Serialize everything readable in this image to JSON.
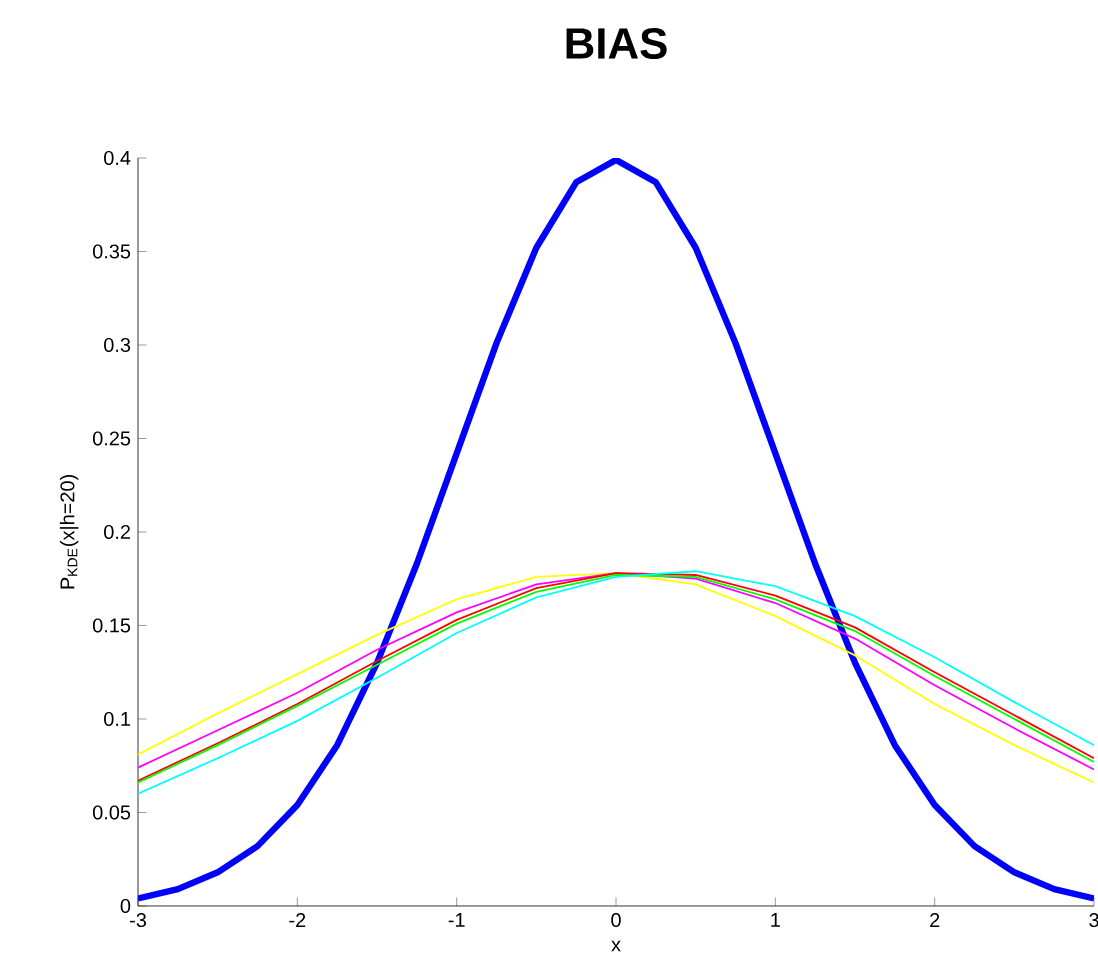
{
  "chart_data": {
    "type": "line",
    "title": "BIAS",
    "xlabel": "x",
    "ylabel": "P$_{KDE}$(x|h=20)",
    "xlim": [
      -3,
      3
    ],
    "ylim": [
      0,
      0.4
    ],
    "xticks": [
      -3,
      -2,
      -1,
      0,
      1,
      2,
      3
    ],
    "yticks": [
      0,
      0.05,
      0.1,
      0.15,
      0.2,
      0.25,
      0.3,
      0.35,
      0.4
    ],
    "grid": false,
    "marker": "none",
    "line_style": "solid",
    "series": [
      {
        "color": "#0000ff",
        "x": [
          -3,
          -2.75,
          -2.5,
          -2.25,
          -2,
          -1.75,
          -1.5,
          -1.25,
          -1,
          -0.75,
          -0.5,
          -0.25,
          0,
          0.25,
          0.5,
          0.75,
          1,
          1.25,
          1.5,
          1.75,
          2,
          2.25,
          2.5,
          2.75,
          3
        ],
        "values": [
          0.004,
          0.009,
          0.018,
          0.032,
          0.054,
          0.086,
          0.13,
          0.183,
          0.242,
          0.301,
          0.352,
          0.387,
          0.399,
          0.387,
          0.352,
          0.301,
          0.242,
          0.183,
          0.13,
          0.086,
          0.054,
          0.032,
          0.018,
          0.009,
          0.004
        ]
      },
      {
        "color": "#ffff00",
        "x": [
          -3,
          -2.5,
          -2,
          -1.5,
          -1,
          -0.5,
          0,
          0.5,
          1,
          1.5,
          2,
          2.5,
          3
        ],
        "values": [
          0.081,
          0.103,
          0.124,
          0.145,
          0.164,
          0.176,
          0.178,
          0.172,
          0.155,
          0.134,
          0.108,
          0.086,
          0.066
        ]
      },
      {
        "color": "#ff00ff",
        "x": [
          -3,
          -2.5,
          -2,
          -1.5,
          -1,
          -0.5,
          0,
          0.5,
          1,
          1.5,
          2,
          2.5,
          3
        ],
        "values": [
          0.074,
          0.094,
          0.114,
          0.137,
          0.157,
          0.172,
          0.178,
          0.175,
          0.162,
          0.143,
          0.118,
          0.095,
          0.073
        ]
      },
      {
        "color": "#ff0000",
        "x": [
          -3,
          -2.5,
          -2,
          -1.5,
          -1,
          -0.5,
          0,
          0.5,
          1,
          1.5,
          2,
          2.5,
          3
        ],
        "values": [
          0.067,
          0.087,
          0.108,
          0.131,
          0.153,
          0.17,
          0.178,
          0.177,
          0.166,
          0.149,
          0.125,
          0.102,
          0.079
        ]
      },
      {
        "color": "#00ff00",
        "x": [
          -3,
          -2.5,
          -2,
          -1.5,
          -1,
          -0.5,
          0,
          0.5,
          1,
          1.5,
          2,
          2.5,
          3
        ],
        "values": [
          0.066,
          0.086,
          0.107,
          0.129,
          0.151,
          0.168,
          0.177,
          0.176,
          0.164,
          0.147,
          0.123,
          0.1,
          0.077
        ]
      },
      {
        "color": "#00ffff",
        "x": [
          -3,
          -2.5,
          -2,
          -1.5,
          -1,
          -0.5,
          0,
          0.5,
          1,
          1.5,
          2,
          2.5,
          3
        ],
        "values": [
          0.06,
          0.079,
          0.099,
          0.122,
          0.146,
          0.165,
          0.176,
          0.179,
          0.171,
          0.155,
          0.133,
          0.109,
          0.086
        ]
      }
    ]
  }
}
